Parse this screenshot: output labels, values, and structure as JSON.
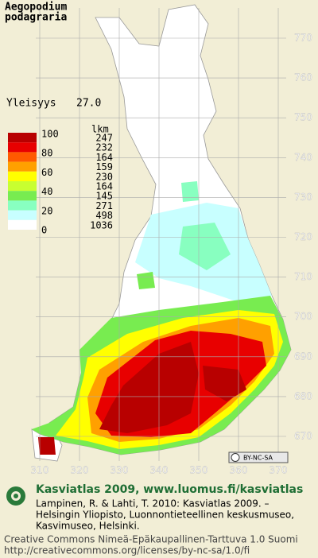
{
  "header": {
    "title_lines": [
      "Aegopodium",
      "podagraria"
    ]
  },
  "frequency": {
    "label": "Yleisyys",
    "value": "27.0"
  },
  "legend": {
    "count_header": "lkm",
    "scale_labels": [
      "100",
      "80",
      "60",
      "40",
      "20",
      "0"
    ],
    "classes": [
      {
        "color": "#b80000",
        "count": "247"
      },
      {
        "color": "#e80000",
        "count": "232"
      },
      {
        "color": "#ff5a00",
        "count": "164"
      },
      {
        "color": "#ffa000",
        "count": "159"
      },
      {
        "color": "#ffff00",
        "count": "230"
      },
      {
        "color": "#c8ff30",
        "count": "164"
      },
      {
        "color": "#78ec50",
        "count": "145"
      },
      {
        "color": "#88ffc0",
        "count": "271"
      },
      {
        "color": "#c8ffff",
        "count": "498"
      },
      {
        "color": "#ffffff",
        "count": "1036"
      }
    ]
  },
  "grid": {
    "northing_labels": [
      "770",
      "760",
      "750",
      "740",
      "730",
      "720",
      "710",
      "700",
      "690",
      "680",
      "670"
    ],
    "easting_labels": [
      "310",
      "320",
      "330",
      "340",
      "350",
      "360",
      "370"
    ]
  },
  "license_badge": "BY-NC-SA",
  "footer": {
    "heading": "Kasviatlas 2009, www.luomus.fi/kasviatlas",
    "citation_lines": [
      "Lampinen, R. & Lahti, T. 2010: Kasviatlas 2009. –",
      "Helsingin Yliopisto, Luonnontieteellinen keskusmuseo,",
      "Kasvimuseo, Helsinki."
    ],
    "license_lines": [
      "Creative Commons Nimeä-Epäkaupallinen-Tarttuva 1.0 Suomi",
      "http://creativecommons.org/licenses/by-nc-sa/1.0/fi"
    ]
  }
}
